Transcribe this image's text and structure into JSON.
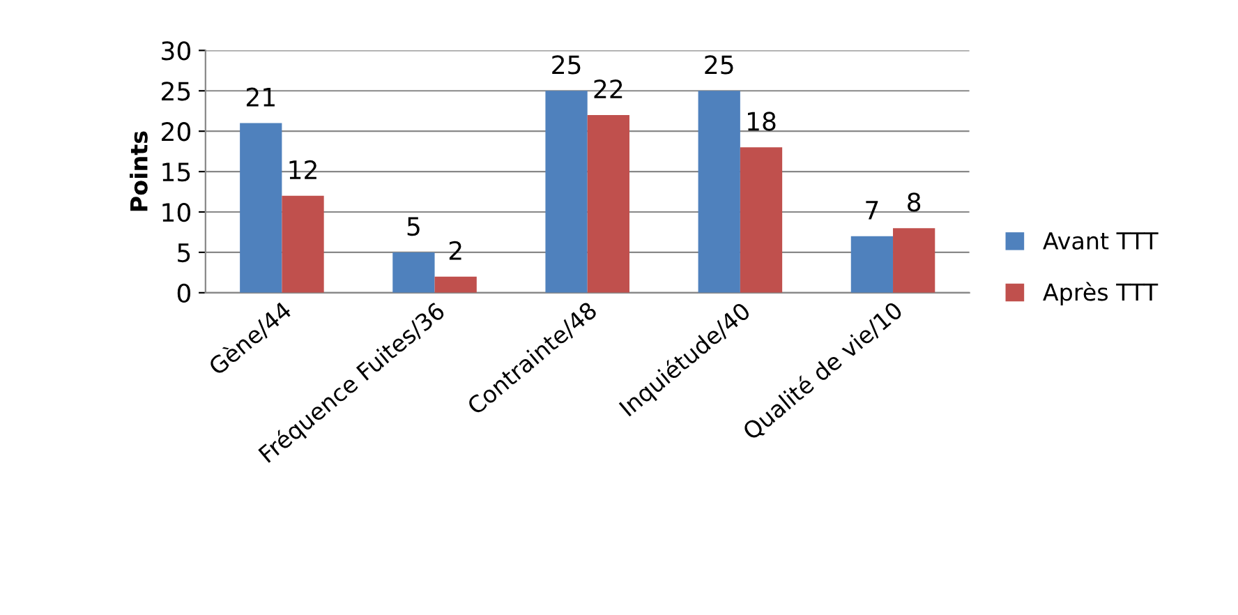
{
  "chart_data": {
    "type": "bar",
    "ylabel": "Points",
    "categories": [
      "Gène/44",
      "Fréquence Fuites/36",
      "Contrainte/48",
      "Inquiétude/40",
      "Qualité de vie/10"
    ],
    "series": [
      {
        "name": "Avant TTT",
        "color": "#4f81bd",
        "values": [
          21,
          5,
          25,
          25,
          7
        ]
      },
      {
        "name": "Après TTT",
        "color": "#c0504d",
        "values": [
          12,
          2,
          22,
          18,
          8
        ]
      }
    ],
    "ylim": [
      0,
      30
    ],
    "yticks": [
      0,
      5,
      10,
      15,
      20,
      25,
      30
    ],
    "grid": "y",
    "legend": "right",
    "data_labels": true
  }
}
